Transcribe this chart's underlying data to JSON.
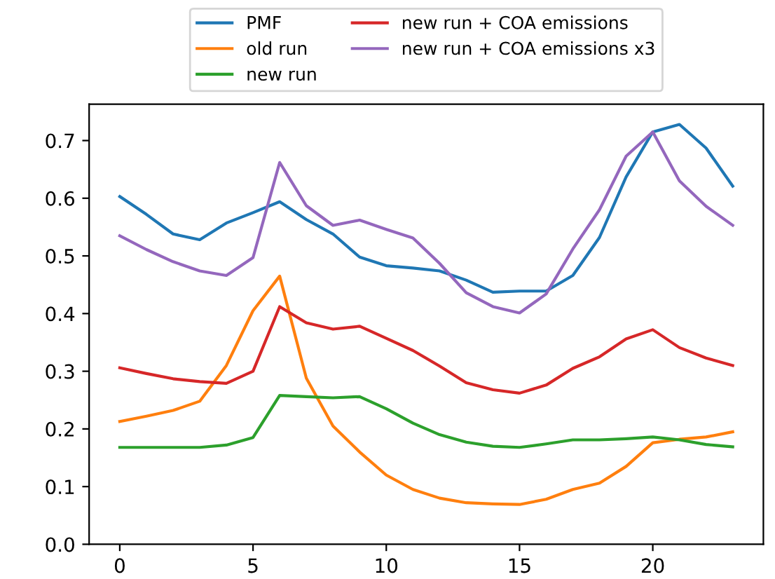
{
  "chart_data": {
    "type": "line",
    "x": [
      0,
      1,
      2,
      3,
      4,
      5,
      6,
      7,
      8,
      9,
      10,
      11,
      12,
      13,
      14,
      15,
      16,
      17,
      18,
      19,
      20,
      21,
      22,
      23
    ],
    "series": [
      {
        "name": "PMF",
        "color": "#1f77b4",
        "values": [
          0.603,
          0.572,
          0.538,
          0.528,
          0.557,
          0.575,
          0.594,
          0.563,
          0.538,
          0.498,
          0.483,
          0.479,
          0.474,
          0.458,
          0.437,
          0.439,
          0.439,
          0.466,
          0.532,
          0.637,
          0.715,
          0.728,
          0.687,
          0.621
        ]
      },
      {
        "name": "old run",
        "color": "#ff7f0e",
        "values": [
          0.213,
          0.222,
          0.232,
          0.248,
          0.31,
          0.405,
          0.465,
          0.288,
          0.205,
          0.16,
          0.12,
          0.095,
          0.08,
          0.072,
          0.07,
          0.069,
          0.078,
          0.095,
          0.106,
          0.135,
          0.176,
          0.182,
          0.186,
          0.195
        ]
      },
      {
        "name": "new run",
        "color": "#2ca02c",
        "values": [
          0.168,
          0.168,
          0.168,
          0.168,
          0.172,
          0.185,
          0.258,
          0.256,
          0.254,
          0.256,
          0.235,
          0.21,
          0.19,
          0.177,
          0.17,
          0.168,
          0.174,
          0.181,
          0.181,
          0.183,
          0.186,
          0.181,
          0.173,
          0.169
        ]
      },
      {
        "name": "new run + COA emissions",
        "color": "#d62728",
        "values": [
          0.306,
          0.296,
          0.287,
          0.282,
          0.279,
          0.3,
          0.412,
          0.384,
          0.373,
          0.378,
          0.357,
          0.336,
          0.309,
          0.28,
          0.268,
          0.262,
          0.276,
          0.305,
          0.325,
          0.356,
          0.372,
          0.341,
          0.323,
          0.31
        ]
      },
      {
        "name": "new run + COA emissions x3",
        "color": "#9467bd",
        "values": [
          0.535,
          0.511,
          0.49,
          0.474,
          0.466,
          0.497,
          0.662,
          0.587,
          0.553,
          0.562,
          0.546,
          0.531,
          0.487,
          0.436,
          0.412,
          0.401,
          0.434,
          0.512,
          0.58,
          0.673,
          0.715,
          0.63,
          0.586,
          0.553
        ]
      }
    ],
    "xlim": [
      -1.15,
      24.15
    ],
    "xticks": [
      0,
      5,
      10,
      15,
      20
    ],
    "ylim": [
      0,
      0.763
    ],
    "yticks": [
      {
        "value": 0,
        "label": "0.0"
      },
      0.1,
      0.2,
      0.3,
      0.4,
      0.5,
      0.6,
      0.7
    ],
    "legend": "top",
    "grid": false,
    "marker": "none",
    "line_style": "solid"
  }
}
